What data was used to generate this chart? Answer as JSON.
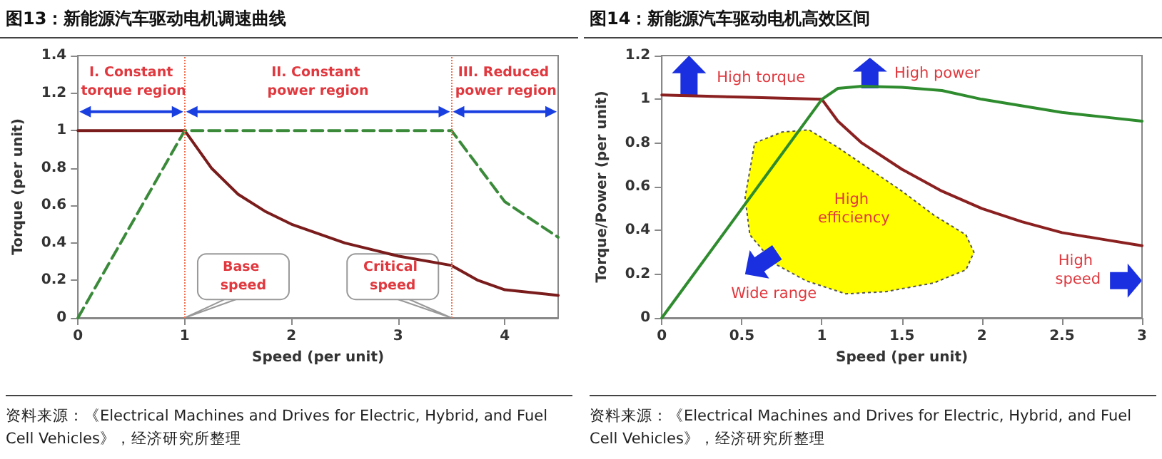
{
  "chart_data": [
    {
      "type": "line",
      "title": "图13：新能源汽车驱动电机调速曲线",
      "xlabel": "Speed (per unit)",
      "ylabel": "Torque (per unit)",
      "xlim": [
        0,
        4.5
      ],
      "xticks": [
        0,
        1,
        2,
        3,
        4
      ],
      "ylim": [
        0,
        1.4
      ],
      "yticks": [
        0,
        0.2,
        0.4,
        0.6,
        0.8,
        1,
        1.2,
        1.4
      ],
      "grid": false,
      "marker": "none",
      "series": [
        {
          "color": "#7a1c1c",
          "line_style": "solid",
          "x": [
            0,
            1,
            1.25,
            1.5,
            1.75,
            2,
            2.5,
            3,
            3.5,
            3.75,
            4,
            4.5
          ],
          "values": [
            1,
            1,
            0.8,
            0.66,
            0.57,
            0.5,
            0.4,
            0.33,
            0.28,
            0.2,
            0.15,
            0.12
          ]
        },
        {
          "color": "#3a8a3a",
          "line_style": "dashed",
          "x": [
            0,
            1,
            3.5,
            4,
            4.5
          ],
          "values": [
            0,
            1,
            1,
            0.62,
            0.43
          ]
        }
      ],
      "ref_lines": [
        {
          "axis": "x",
          "value": 1,
          "color": "#f07050",
          "line_style": "dotted"
        },
        {
          "axis": "x",
          "value": 3.5,
          "color": "#f07050",
          "line_style": "dotted"
        }
      ],
      "annotations": [
        "I. Constant torque region",
        "II. Constant power region",
        "III. Reduced power region",
        "Base speed",
        "Critical speed",
        "资料来源：《Electrical Machines and Drives for Electric, Hybrid, and Fuel Cell Vehicles》，经济研究所整理"
      ]
    },
    {
      "type": "line",
      "title": "图14：新能源汽车驱动电机高效区间",
      "xlabel": "Speed (per unit)",
      "ylabel": "Torque/Power (per unit)",
      "xlim": [
        0,
        3
      ],
      "xticks": [
        0,
        0.5,
        1,
        1.5,
        2,
        2.5,
        3
      ],
      "ylim": [
        0,
        1.2
      ],
      "yticks": [
        0,
        0.2,
        0.4,
        0.6,
        0.8,
        1,
        1.2
      ],
      "grid": false,
      "marker": "none",
      "series": [
        {
          "color": "#8b2020",
          "line_style": "solid",
          "x": [
            0,
            0.5,
            1,
            1.1,
            1.25,
            1.5,
            1.75,
            2,
            2.25,
            2.5,
            2.75,
            3
          ],
          "values": [
            1.02,
            1.01,
            1,
            0.9,
            0.8,
            0.68,
            0.58,
            0.5,
            0.44,
            0.39,
            0.36,
            0.33
          ]
        },
        {
          "color": "#2e8b2e",
          "line_style": "solid",
          "x": [
            0,
            0.5,
            1,
            1.1,
            1.25,
            1.5,
            1.75,
            2,
            2.25,
            2.5,
            2.75,
            3
          ],
          "values": [
            0,
            0.5,
            1,
            1.05,
            1.06,
            1.055,
            1.04,
            1,
            0.97,
            0.94,
            0.92,
            0.9
          ]
        }
      ],
      "annotations": [
        "High torque",
        "High power",
        "High efficiency",
        "Wide range",
        "High speed",
        "资料来源：《Electrical Machines and Drives for Electric, Hybrid, and Fuel Cell Vehicles》，经济研究所整理"
      ]
    }
  ]
}
